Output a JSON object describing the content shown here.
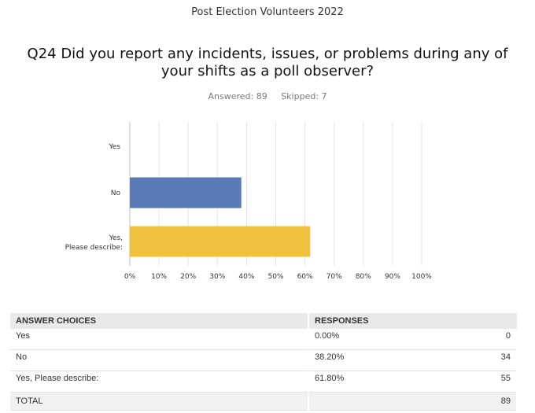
{
  "survey_title": "Post Election Volunteers 2022",
  "question": "Q24 Did you report any incidents, issues,  or problems during any of your shifts as a poll observer?",
  "stats": {
    "answered": "Answered: 89",
    "skipped": "Skipped: 7"
  },
  "chart_data": {
    "type": "bar",
    "orientation": "horizontal",
    "categories": [
      "Yes",
      "No",
      "Yes, Please describe:"
    ],
    "values": [
      0.0,
      38.2,
      61.8
    ],
    "colors": [
      "#5a7ab5",
      "#5a7ab5",
      "#f0c13f"
    ],
    "xlim": [
      0,
      100
    ],
    "xticks": [
      "0%",
      "10%",
      "20%",
      "30%",
      "40%",
      "50%",
      "60%",
      "70%",
      "80%",
      "90%",
      "100%"
    ],
    "grid": true,
    "title": "",
    "xlabel": "",
    "ylabel": ""
  },
  "table": {
    "headers": [
      "ANSWER CHOICES",
      "RESPONSES"
    ],
    "rows": [
      {
        "choice": "Yes",
        "percent": "0.00%",
        "count": "0"
      },
      {
        "choice": "No",
        "percent": "38.20%",
        "count": "34"
      },
      {
        "choice": "Yes, Please describe:",
        "percent": "61.80%",
        "count": "55"
      }
    ],
    "total_label": "TOTAL",
    "total_count": "89"
  }
}
